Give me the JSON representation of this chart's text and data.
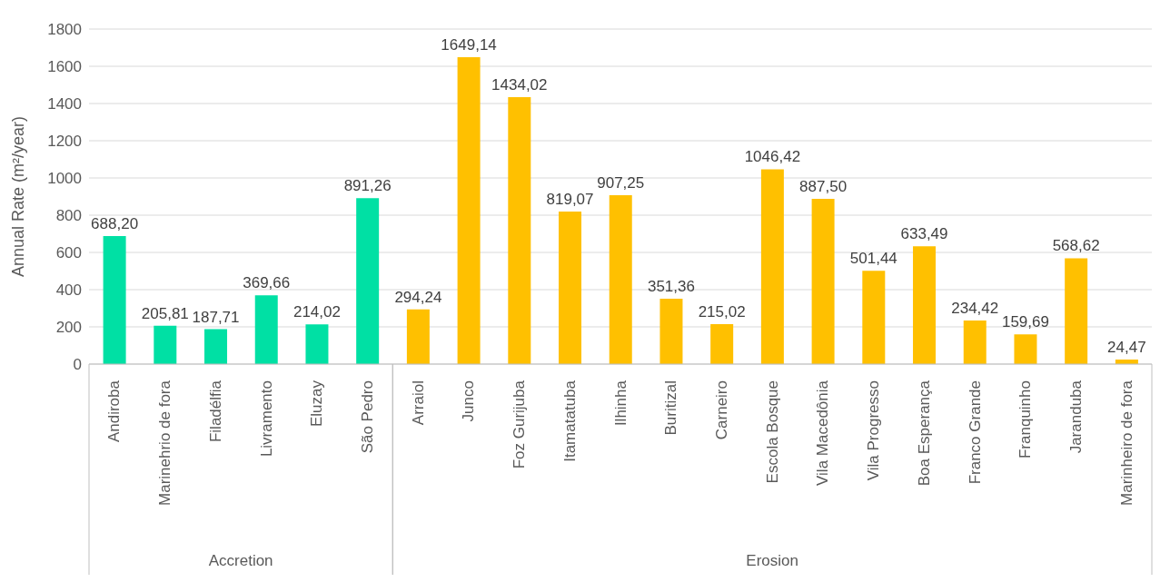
{
  "chart_data": {
    "type": "bar",
    "ylabel": "Annual Rate (m²/year)",
    "categories": [
      "Andiroba",
      "Marinehrio de fora",
      "Filadélfia",
      "Livramento",
      "Eluzay",
      "São Pedro",
      "Arraiol",
      "Junco",
      "Foz Gurijuba",
      "Itamatatuba",
      "Ilhinha",
      "Buritizal",
      "Carneiro",
      "Escola Bosque",
      "Vila Macedônia",
      "Vila Progresso",
      "Boa Esperança",
      "Franco Grande",
      "Franquinho",
      "Jaranduba",
      "Marinheiro de fora"
    ],
    "series": [
      {
        "color": "#00e0a4",
        "values": [
          688.2,
          205.81,
          187.71,
          369.66,
          214.02,
          891.26,
          null,
          null,
          null,
          null,
          null,
          null,
          null,
          null,
          null,
          null,
          null,
          null,
          null,
          null,
          null
        ],
        "value_labels": [
          "688,20",
          "205,81",
          "187,71",
          "369,66",
          "214,02",
          "891,26",
          null,
          null,
          null,
          null,
          null,
          null,
          null,
          null,
          null,
          null,
          null,
          null,
          null,
          null,
          null
        ]
      },
      {
        "color": "#ffc000",
        "values": [
          null,
          null,
          null,
          null,
          null,
          null,
          294.24,
          1649.14,
          1434.02,
          819.07,
          907.25,
          351.36,
          215.02,
          1046.42,
          887.5,
          501.44,
          633.49,
          234.42,
          159.69,
          568.62,
          24.47
        ],
        "value_labels": [
          null,
          null,
          null,
          null,
          null,
          null,
          "294,24",
          "1649,14",
          "1434,02",
          "819,07",
          "907,25",
          "351,36",
          "215,02",
          "1046,42",
          "887,50",
          "501,44",
          "633,49",
          "234,42",
          "159,69",
          "568,62",
          "24,47"
        ]
      }
    ],
    "ylim": [
      0,
      1800
    ],
    "yticks": [
      0,
      200,
      400,
      600,
      800,
      1000,
      1200,
      1400,
      1600,
      1800
    ],
    "grid": "y",
    "annotations": [
      "Accretion",
      "Erosion"
    ]
  }
}
